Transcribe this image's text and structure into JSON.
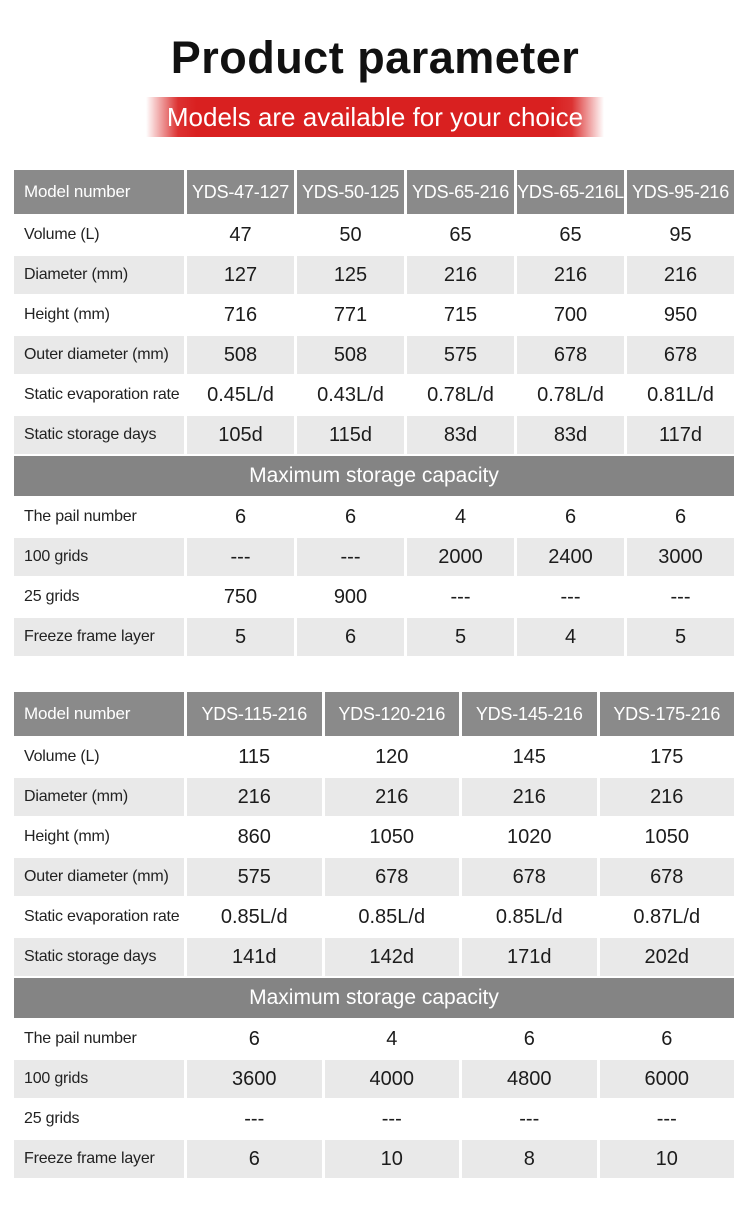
{
  "page": {
    "title": "Product parameter",
    "subtitle": "Models are available for your choice"
  },
  "colors": {
    "accent-red": "#d92020",
    "header-gray": "#8a8a8a",
    "banner-gray": "#848484",
    "row-gray": "#e9e9e9",
    "text-dark": "#1c1c1c"
  },
  "tables": [
    {
      "header_label": "Model number",
      "models": [
        "YDS-47-127",
        "YDS-50-125",
        "YDS-65-216",
        "YDS-65-216L",
        "YDS-95-216"
      ],
      "spec_rows": [
        {
          "label": "Volume (L)",
          "values": [
            "47",
            "50",
            "65",
            "65",
            "95"
          ]
        },
        {
          "label": "Diameter (mm)",
          "values": [
            "127",
            "125",
            "216",
            "216",
            "216"
          ]
        },
        {
          "label": "Height (mm)",
          "values": [
            "716",
            "771",
            "715",
            "700",
            "950"
          ]
        },
        {
          "label": "Outer diameter (mm)",
          "values": [
            "508",
            "508",
            "575",
            "678",
            "678"
          ]
        },
        {
          "label": "Static evaporation rate",
          "values": [
            "0.45L/d",
            "0.43L/d",
            "0.78L/d",
            "0.78L/d",
            "0.81L/d"
          ]
        },
        {
          "label": "Static storage days",
          "values": [
            "105d",
            "115d",
            "83d",
            "83d",
            "117d"
          ]
        }
      ],
      "section_banner": "Maximum storage capacity",
      "capacity_rows": [
        {
          "label": "The pail number",
          "values": [
            "6",
            "6",
            "4",
            "6",
            "6"
          ]
        },
        {
          "label": "100 grids",
          "values": [
            "---",
            "---",
            "2000",
            "2400",
            "3000"
          ]
        },
        {
          "label": "25 grids",
          "values": [
            "750",
            "900",
            "---",
            "---",
            "---"
          ]
        },
        {
          "label": "Freeze frame layer",
          "values": [
            "5",
            "6",
            "5",
            "4",
            "5"
          ]
        }
      ]
    },
    {
      "header_label": "Model number",
      "models": [
        "YDS-115-216",
        "YDS-120-216",
        "YDS-145-216",
        "YDS-175-216"
      ],
      "spec_rows": [
        {
          "label": "Volume (L)",
          "values": [
            "115",
            "120",
            "145",
            "175"
          ]
        },
        {
          "label": "Diameter (mm)",
          "values": [
            "216",
            "216",
            "216",
            "216"
          ]
        },
        {
          "label": "Height (mm)",
          "values": [
            "860",
            "1050",
            "1020",
            "1050"
          ]
        },
        {
          "label": "Outer diameter (mm)",
          "values": [
            "575",
            "678",
            "678",
            "678"
          ]
        },
        {
          "label": "Static evaporation rate",
          "values": [
            "0.85L/d",
            "0.85L/d",
            "0.85L/d",
            "0.87L/d"
          ]
        },
        {
          "label": "Static storage days",
          "values": [
            "141d",
            "142d",
            "171d",
            "202d"
          ]
        }
      ],
      "section_banner": "Maximum storage capacity",
      "capacity_rows": [
        {
          "label": "The pail number",
          "values": [
            "6",
            "4",
            "6",
            "6"
          ]
        },
        {
          "label": "100 grids",
          "values": [
            "3600",
            "4000",
            "4800",
            "6000"
          ]
        },
        {
          "label": "25 grids",
          "values": [
            "---",
            "---",
            "---",
            "---"
          ]
        },
        {
          "label": "Freeze frame layer",
          "values": [
            "6",
            "10",
            "8",
            "10"
          ]
        }
      ]
    }
  ]
}
